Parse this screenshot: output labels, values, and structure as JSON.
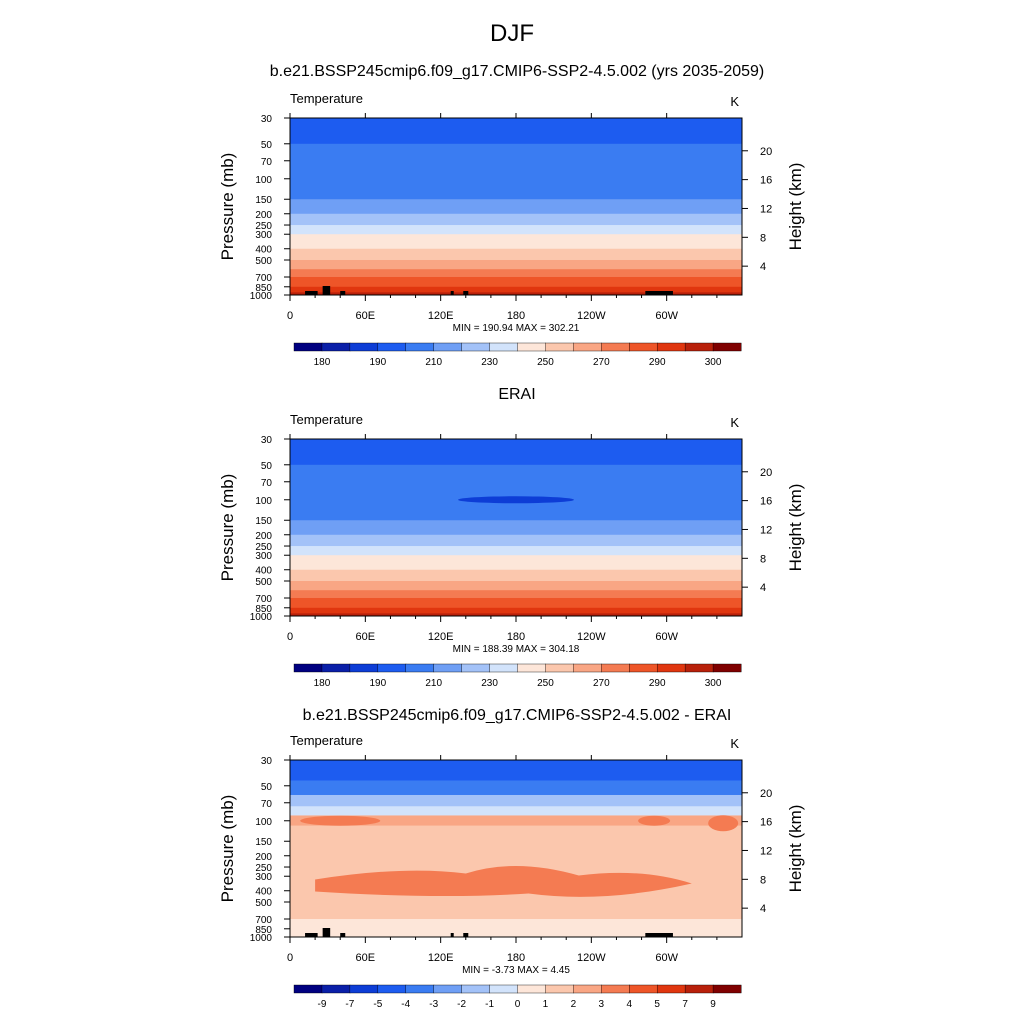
{
  "figure": {
    "title": "DJF"
  },
  "chart_data": [
    {
      "type": "heatmap",
      "title": "b.e21.BSSP245cmip6.f09_g17.CMIP6-SSP2-4.5.002 (yrs 2035-2059)",
      "left_label": "Temperature",
      "units_label": "K",
      "ylabel": "Pressure (mb)",
      "y2label": "Height (km)",
      "x_ticks": [
        "0",
        "60E",
        "120E",
        "180",
        "120W",
        "60W"
      ],
      "y_ticks": [
        "30",
        "50",
        "70",
        "100",
        "150",
        "200",
        "250",
        "300",
        "400",
        "500",
        "700",
        "850",
        "1000"
      ],
      "y2_ticks": [
        "20",
        "16",
        "12",
        "8",
        "4"
      ],
      "stats": "MIN = 190.94  MAX = 302.21",
      "colorbar_labels": [
        "180",
        "190",
        "210",
        "230",
        "250",
        "270",
        "290",
        "300"
      ],
      "bands": [
        {
          "p": 30,
          "level": 3
        },
        {
          "p": 50,
          "level": 4
        },
        {
          "p": 70,
          "level": 4
        },
        {
          "p": 100,
          "level": 4
        },
        {
          "p": 150,
          "level": 5
        },
        {
          "p": 200,
          "level": 6
        },
        {
          "p": 250,
          "level": 7
        },
        {
          "p": 300,
          "level": 8
        },
        {
          "p": 400,
          "level": 9
        },
        {
          "p": 500,
          "level": 10
        },
        {
          "p": 600,
          "level": 11
        },
        {
          "p": 700,
          "level": 12
        },
        {
          "p": 850,
          "level": 13
        },
        {
          "p": 950,
          "level": 14
        }
      ],
      "topography": [
        [
          12,
          22
        ],
        [
          26,
          32
        ],
        [
          40,
          44
        ],
        [
          128,
          129
        ],
        [
          138,
          142
        ],
        [
          283,
          305
        ]
      ]
    },
    {
      "type": "heatmap",
      "title": "ERAI",
      "left_label": "Temperature",
      "units_label": "K",
      "ylabel": "Pressure (mb)",
      "y2label": "Height (km)",
      "x_ticks": [
        "0",
        "60E",
        "120E",
        "180",
        "120W",
        "60W"
      ],
      "y_ticks": [
        "30",
        "50",
        "70",
        "100",
        "150",
        "200",
        "250",
        "300",
        "400",
        "500",
        "700",
        "850",
        "1000"
      ],
      "y2_ticks": [
        "20",
        "16",
        "12",
        "8",
        "4"
      ],
      "stats": "MIN = 188.39  MAX = 304.18",
      "colorbar_labels": [
        "180",
        "190",
        "210",
        "230",
        "250",
        "270",
        "290",
        "300"
      ],
      "bands": [
        {
          "p": 30,
          "level": 3
        },
        {
          "p": 50,
          "level": 4
        },
        {
          "p": 70,
          "level": 4
        },
        {
          "p": 100,
          "level": 4
        },
        {
          "p": 150,
          "level": 5
        },
        {
          "p": 200,
          "level": 6
        },
        {
          "p": 250,
          "level": 7
        },
        {
          "p": 300,
          "level": 8
        },
        {
          "p": 400,
          "level": 9
        },
        {
          "p": 500,
          "level": 10
        },
        {
          "p": 600,
          "level": 11
        },
        {
          "p": 700,
          "level": 12
        },
        {
          "p": 850,
          "level": 13
        },
        {
          "p": 950,
          "level": 14
        }
      ],
      "topography": []
    },
    {
      "type": "heatmap",
      "title": "b.e21.BSSP245cmip6.f09_g17.CMIP6-SSP2-4.5.002 - ERAI",
      "left_label": "Temperature",
      "units_label": "K",
      "ylabel": "Pressure (mb)",
      "y2label": "Height (km)",
      "x_ticks": [
        "0",
        "60E",
        "120E",
        "180",
        "120W",
        "60W"
      ],
      "y_ticks": [
        "30",
        "50",
        "70",
        "100",
        "150",
        "200",
        "250",
        "300",
        "400",
        "500",
        "700",
        "850",
        "1000"
      ],
      "y2_ticks": [
        "20",
        "16",
        "12",
        "8",
        "4"
      ],
      "stats": "MIN =  -3.73  MAX =   4.45",
      "colorbar_labels": [
        "-9",
        "-7",
        "-5",
        "-4",
        "-3",
        "-2",
        "-1",
        "0",
        "1",
        "2",
        "3",
        "4",
        "5",
        "7",
        "9"
      ],
      "bands": [
        {
          "p": 30,
          "level": 3
        },
        {
          "p": 45,
          "level": 4
        },
        {
          "p": 60,
          "level": 6
        },
        {
          "p": 75,
          "level": 7
        },
        {
          "p": 90,
          "level": 10
        },
        {
          "p": 110,
          "level": 9
        },
        {
          "p": 700,
          "level": 8
        }
      ],
      "topography": [
        [
          12,
          22
        ],
        [
          26,
          32
        ],
        [
          40,
          44
        ],
        [
          128,
          129
        ],
        [
          138,
          142
        ],
        [
          283,
          305
        ]
      ]
    }
  ],
  "palette": [
    "#000080",
    "#0a1fa8",
    "#0d3dd6",
    "#1d5cf0",
    "#3a7cf2",
    "#6f9ff5",
    "#a3c2f8",
    "#d2e3fb",
    "#fde6d9",
    "#fbc7ad",
    "#f9a684",
    "#f47b52",
    "#ee5528",
    "#e0360f",
    "#b8200a",
    "#7f0000"
  ]
}
